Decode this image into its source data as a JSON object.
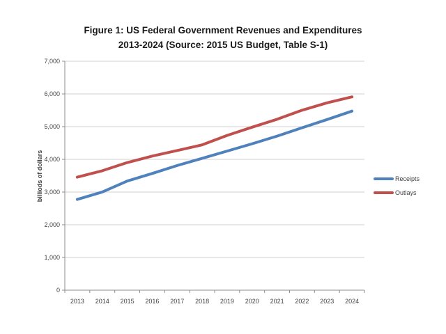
{
  "chart_data": {
    "type": "line",
    "title": "Figure 1: US Federal Government Revenues and Expenditures 2013-2024 (Source: 2015 US Budget, Table S-1)",
    "title_line1": "Figure 1: US Federal Government Revenues and Expenditures",
    "title_line2": "2013-2024 (Source: 2015 US Budget, Table S-1)",
    "xlabel": "",
    "ylabel": "billiods of dollars",
    "x": [
      "2013",
      "2014",
      "2015",
      "2016",
      "2017",
      "2018",
      "2019",
      "2020",
      "2021",
      "2022",
      "2023",
      "2024"
    ],
    "series": [
      {
        "name": "Receipts",
        "color": "#4F81BD",
        "values": [
          2775,
          3002,
          3337,
          3568,
          3811,
          4030,
          4253,
          4476,
          4710,
          4966,
          5217,
          5475
        ]
      },
      {
        "name": "Outlays",
        "color": "#C0504D",
        "values": [
          3455,
          3651,
          3901,
          4099,
          4269,
          4443,
          4732,
          4983,
          5225,
          5502,
          5728,
          5910
        ]
      }
    ],
    "ylim": [
      0,
      7000
    ],
    "ytick_step": 1000,
    "ytick_labels": [
      "0",
      "1,000",
      "2,000",
      "3,000",
      "4,000",
      "5,000",
      "6,000",
      "7,000"
    ],
    "grid": "horizontal",
    "legend_position": "right",
    "colors": {
      "grid": "#D0D0D0",
      "axis": "#8C8C8C",
      "tick_text": "#404040",
      "title_text": "#1A1A1A",
      "background": "#FFFFFF"
    }
  }
}
